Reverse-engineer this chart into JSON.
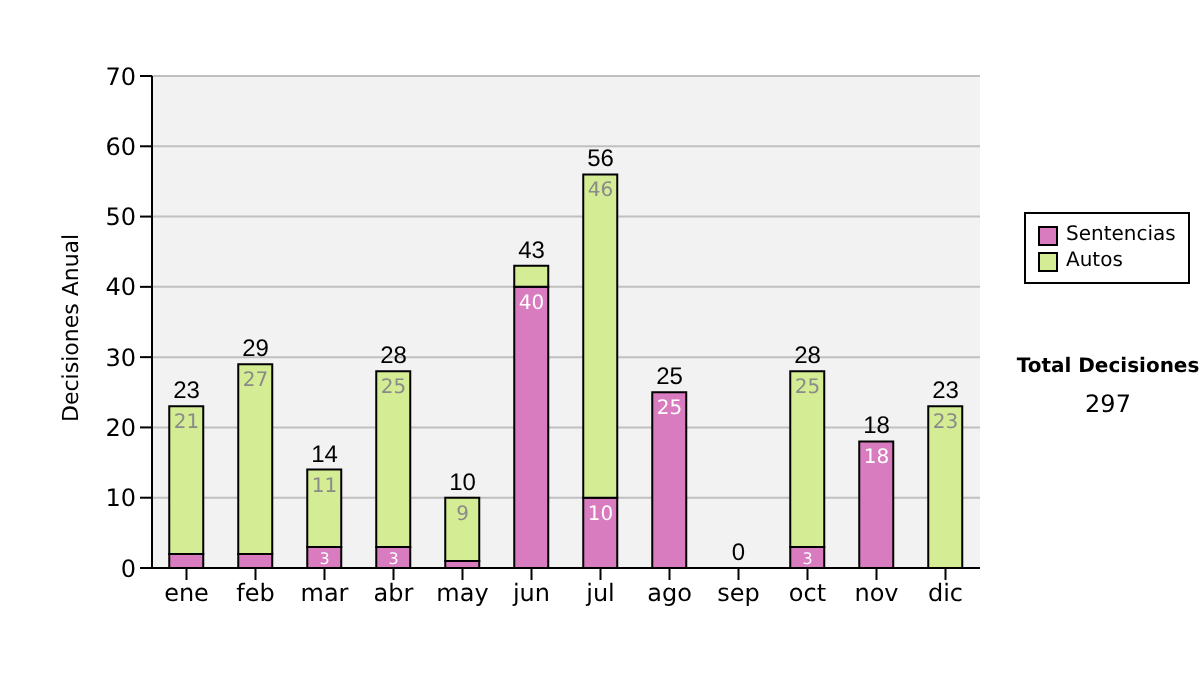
{
  "chart_data": {
    "type": "bar",
    "stacked": true,
    "ylabel": "Decisiones Anual",
    "categories": [
      "ene",
      "feb",
      "mar",
      "abr",
      "may",
      "jun",
      "jul",
      "ago",
      "sep",
      "oct",
      "nov",
      "dic"
    ],
    "series": [
      {
        "name": "Sentencias",
        "color": "#d97bbf",
        "values": [
          2,
          2,
          3,
          3,
          1,
          40,
          10,
          25,
          0,
          3,
          18,
          0
        ],
        "value_labels": [
          null,
          null,
          "3",
          "3",
          null,
          "40",
          "10",
          "25",
          null,
          "3",
          "18",
          null
        ]
      },
      {
        "name": "Autos",
        "color": "#d4ec94",
        "values": [
          21,
          27,
          11,
          25,
          9,
          3,
          46,
          0,
          0,
          25,
          0,
          23
        ],
        "value_labels": [
          "21",
          "27",
          "11",
          "25",
          "9",
          null,
          "46",
          null,
          null,
          "25",
          null,
          "23"
        ]
      }
    ],
    "totals": [
      "23",
      "29",
      "14",
      "28",
      "10",
      "43",
      "56",
      "25",
      "0",
      "28",
      "18",
      "23"
    ],
    "ylim": [
      0,
      70
    ],
    "yticks": [
      0,
      10,
      20,
      30,
      40,
      50,
      60,
      70
    ],
    "grid": "y",
    "legend": "right",
    "annotations": [
      "Total Decisiones",
      "297"
    ]
  }
}
